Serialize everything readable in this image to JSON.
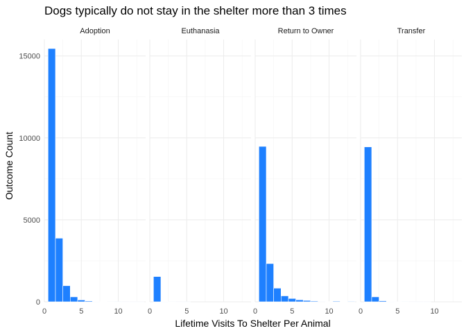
{
  "chart_data": {
    "type": "bar",
    "title": "Dogs typically do not stay in the shelter more than 3 times",
    "xlabel": "Lifetime Visits To Shelter Per Animal",
    "ylabel": "Outcome Count",
    "xlim": [
      0,
      13.7
    ],
    "ylim": [
      0,
      16000
    ],
    "x_ticks": [
      0,
      5,
      10
    ],
    "y_ticks": [
      0,
      5000,
      10000,
      15000
    ],
    "grid": true,
    "bar_color": "#1e80ff",
    "x": [
      1,
      2,
      3,
      4,
      5,
      6,
      7,
      8,
      9,
      10,
      11,
      12,
      13
    ],
    "panels": [
      {
        "name": "Adoption",
        "values": [
          15450,
          3880,
          980,
          300,
          110,
          50,
          20,
          10,
          5,
          3,
          2,
          1,
          1
        ]
      },
      {
        "name": "Euthanasia",
        "values": [
          1540,
          20,
          5,
          2,
          1,
          0,
          0,
          0,
          0,
          0,
          0,
          0,
          0
        ]
      },
      {
        "name": "Return to Owner",
        "values": [
          9480,
          2330,
          830,
          360,
          200,
          120,
          80,
          45,
          25,
          15,
          40,
          10,
          30
        ]
      },
      {
        "name": "Transfer",
        "values": [
          9450,
          300,
          60,
          20,
          8,
          4,
          2,
          1,
          1,
          0,
          0,
          0,
          0
        ]
      }
    ]
  }
}
